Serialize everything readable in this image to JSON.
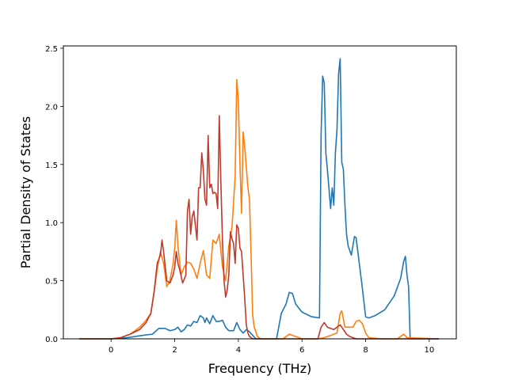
{
  "chart_data": {
    "type": "line",
    "xlabel": "Frequency (THz)",
    "ylabel": "Partial Density of States",
    "xlim": [
      -1.5,
      10.85
    ],
    "ylim": [
      0,
      2.52
    ],
    "xticks": [
      0,
      2,
      4,
      6,
      8,
      10
    ],
    "yticks": [
      0.0,
      0.5,
      1.0,
      1.5,
      2.0,
      2.5
    ],
    "xtick_labels": [
      "0",
      "2",
      "4",
      "6",
      "8",
      "10"
    ],
    "ytick_labels": [
      "0.0",
      "0.5",
      "1.0",
      "1.5",
      "2.0",
      "2.5"
    ],
    "grid": false,
    "series": [
      {
        "color": "#1f77b4",
        "x": [
          -1.0,
          0.0,
          0.5,
          1.0,
          1.3,
          1.5,
          1.7,
          1.85,
          2.0,
          2.1,
          2.2,
          2.3,
          2.4,
          2.5,
          2.6,
          2.7,
          2.8,
          2.85,
          2.9,
          2.95,
          3.0,
          3.1,
          3.2,
          3.3,
          3.4,
          3.5,
          3.6,
          3.7,
          3.85,
          3.95,
          4.05,
          4.15,
          4.25,
          4.35,
          4.45,
          4.55,
          5.2,
          5.35,
          5.5,
          5.6,
          5.7,
          5.8,
          6.0,
          6.3,
          6.55,
          6.6,
          6.65,
          6.7,
          6.75,
          6.8,
          6.9,
          6.95,
          7.0,
          7.05,
          7.1,
          7.15,
          7.2,
          7.25,
          7.3,
          7.35,
          7.4,
          7.45,
          7.55,
          7.65,
          7.7,
          7.8,
          7.9,
          8.0,
          8.1,
          8.3,
          8.6,
          8.9,
          9.1,
          9.2,
          9.25,
          9.3,
          9.35,
          9.4,
          10.3
        ],
        "values": [
          0.0,
          0.0,
          0.01,
          0.03,
          0.04,
          0.09,
          0.09,
          0.07,
          0.08,
          0.1,
          0.06,
          0.08,
          0.12,
          0.11,
          0.15,
          0.14,
          0.2,
          0.19,
          0.18,
          0.14,
          0.18,
          0.13,
          0.2,
          0.15,
          0.15,
          0.16,
          0.1,
          0.07,
          0.07,
          0.14,
          0.08,
          0.05,
          0.08,
          0.06,
          0.03,
          0.0,
          0.0,
          0.22,
          0.3,
          0.4,
          0.39,
          0.3,
          0.23,
          0.19,
          0.18,
          1.75,
          2.26,
          2.2,
          1.6,
          1.45,
          1.12,
          1.3,
          1.15,
          1.6,
          1.8,
          2.28,
          2.41,
          1.52,
          1.46,
          1.15,
          0.9,
          0.8,
          0.72,
          0.88,
          0.87,
          0.65,
          0.43,
          0.19,
          0.18,
          0.2,
          0.25,
          0.37,
          0.52,
          0.67,
          0.71,
          0.55,
          0.45,
          0.0,
          0.0
        ]
      },
      {
        "color": "#ff7f0e",
        "x": [
          -1.0,
          0.0,
          0.3,
          0.6,
          0.9,
          1.1,
          1.25,
          1.35,
          1.45,
          1.55,
          1.65,
          1.75,
          1.85,
          1.95,
          2.0,
          2.05,
          2.1,
          2.2,
          2.3,
          2.4,
          2.5,
          2.6,
          2.7,
          2.8,
          2.9,
          3.0,
          3.1,
          3.2,
          3.3,
          3.4,
          3.5,
          3.6,
          3.7,
          3.8,
          3.9,
          3.95,
          4.0,
          4.05,
          4.1,
          4.15,
          4.2,
          4.3,
          4.35,
          4.4,
          4.45,
          4.5,
          4.6,
          4.7,
          5.4,
          5.5,
          5.6,
          5.8,
          6.0,
          6.5,
          6.7,
          6.9,
          7.1,
          7.2,
          7.25,
          7.35,
          7.5,
          7.6,
          7.7,
          7.8,
          7.9,
          8.0,
          8.1,
          8.5,
          9.0,
          9.1,
          9.2,
          9.3,
          10.3
        ],
        "values": [
          0.0,
          0.0,
          0.01,
          0.04,
          0.1,
          0.16,
          0.22,
          0.4,
          0.6,
          0.75,
          0.65,
          0.45,
          0.5,
          0.65,
          0.78,
          1.02,
          0.8,
          0.55,
          0.62,
          0.66,
          0.65,
          0.6,
          0.52,
          0.65,
          0.76,
          0.55,
          0.52,
          0.85,
          0.82,
          0.9,
          0.62,
          0.5,
          0.8,
          0.96,
          1.4,
          2.23,
          2.05,
          1.5,
          1.08,
          1.78,
          1.65,
          1.3,
          1.2,
          0.72,
          0.2,
          0.1,
          0.02,
          0.0,
          0.0,
          0.02,
          0.04,
          0.02,
          0.0,
          0.0,
          0.01,
          0.03,
          0.05,
          0.22,
          0.24,
          0.1,
          0.1,
          0.1,
          0.15,
          0.16,
          0.13,
          0.05,
          0.01,
          0.0,
          0.0,
          0.02,
          0.04,
          0.01,
          0.0
        ]
      },
      {
        "color": "#c0392b",
        "x": [
          -1.0,
          0.0,
          0.3,
          0.6,
          0.9,
          1.1,
          1.25,
          1.35,
          1.45,
          1.55,
          1.6,
          1.65,
          1.75,
          1.85,
          1.95,
          2.0,
          2.05,
          2.1,
          2.15,
          2.25,
          2.35,
          2.4,
          2.45,
          2.5,
          2.55,
          2.6,
          2.7,
          2.75,
          2.8,
          2.85,
          2.9,
          2.95,
          3.0,
          3.05,
          3.1,
          3.15,
          3.2,
          3.25,
          3.3,
          3.35,
          3.4,
          3.45,
          3.5,
          3.55,
          3.6,
          3.65,
          3.7,
          3.75,
          3.8,
          3.85,
          3.9,
          3.95,
          4.0,
          4.05,
          4.1,
          4.15,
          4.2,
          4.25,
          4.3,
          4.35,
          4.4,
          4.45,
          4.5,
          4.6,
          4.7,
          6.5,
          6.6,
          6.7,
          6.8,
          7.0,
          7.1,
          7.2,
          7.25,
          7.3,
          7.4,
          7.5,
          7.6,
          7.7,
          7.8,
          10.3
        ],
        "values": [
          0.0,
          0.0,
          0.01,
          0.04,
          0.08,
          0.14,
          0.22,
          0.4,
          0.65,
          0.72,
          0.85,
          0.75,
          0.5,
          0.48,
          0.55,
          0.62,
          0.75,
          0.65,
          0.6,
          0.48,
          0.55,
          1.1,
          1.2,
          0.9,
          1.05,
          1.1,
          0.85,
          1.3,
          1.3,
          1.6,
          1.45,
          1.2,
          1.15,
          1.75,
          1.3,
          1.33,
          1.25,
          1.26,
          1.25,
          1.12,
          1.92,
          1.35,
          0.85,
          0.5,
          0.36,
          0.42,
          0.55,
          0.92,
          0.86,
          0.82,
          0.65,
          0.98,
          0.95,
          0.78,
          0.75,
          0.55,
          0.35,
          0.12,
          0.05,
          0.02,
          0.01,
          0.0,
          0.0,
          0.0,
          0.0,
          0.0,
          0.1,
          0.14,
          0.1,
          0.08,
          0.1,
          0.12,
          0.1,
          0.08,
          0.04,
          0.02,
          0.01,
          0.0,
          0.0,
          0.0
        ]
      }
    ]
  }
}
